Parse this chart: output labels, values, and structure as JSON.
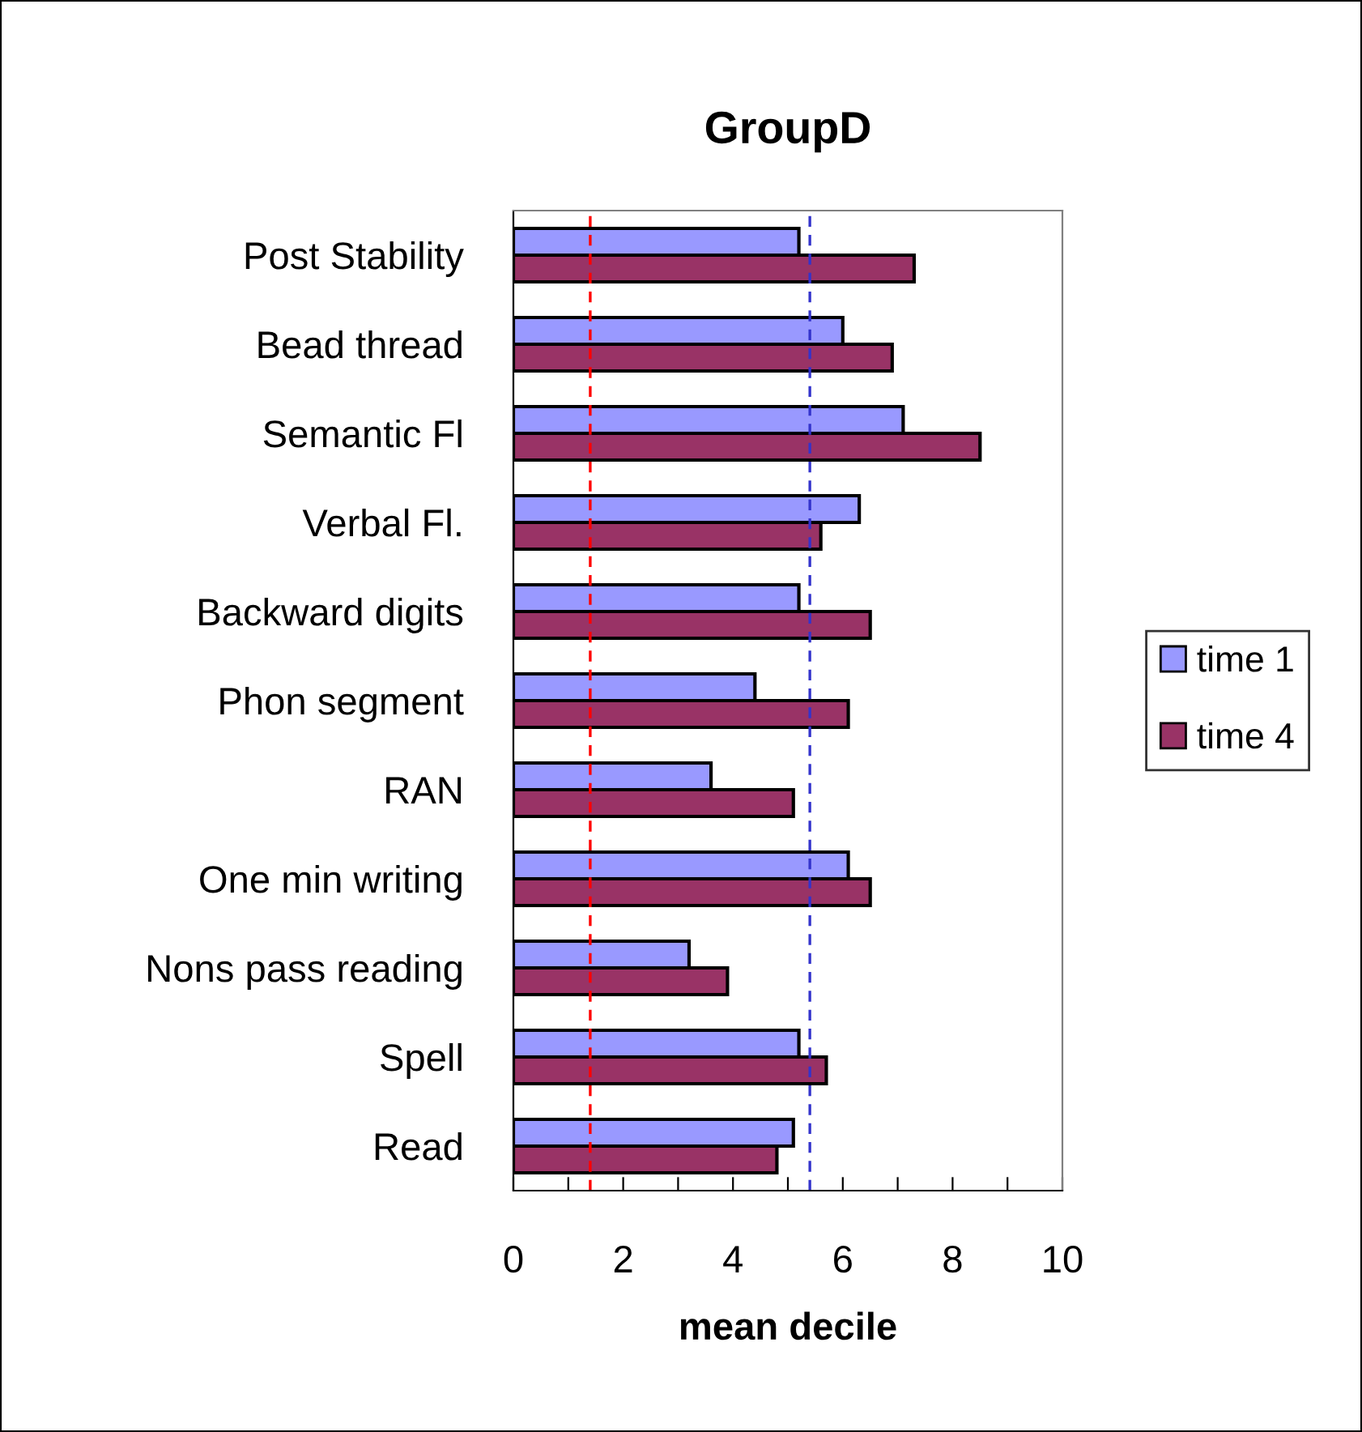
{
  "chart_data": {
    "type": "bar",
    "orientation": "horizontal",
    "title": "GroupD",
    "xlabel": "mean decile",
    "categories": [
      "Post Stability",
      "Bead thread",
      "Semantic Fl",
      "Verbal Fl.",
      "Backward digits",
      "Phon segment",
      "RAN",
      "One min writing",
      "Nons pass reading",
      "Spell",
      "Read"
    ],
    "series": [
      {
        "name": "time 1",
        "color": "#9999ff",
        "values": [
          5.2,
          6.0,
          7.1,
          6.3,
          5.2,
          4.4,
          3.6,
          6.1,
          3.2,
          5.2,
          5.1
        ]
      },
      {
        "name": "time 4",
        "color": "#993366",
        "values": [
          7.3,
          6.9,
          8.5,
          5.6,
          6.5,
          6.1,
          5.1,
          6.5,
          3.9,
          5.7,
          4.8
        ]
      }
    ],
    "xlim": [
      0,
      10
    ],
    "xticks": [
      0,
      {
        "value": 1,
        "label": null
      },
      2,
      {
        "value": 3,
        "label": null
      },
      4,
      {
        "value": 5,
        "label": null
      },
      6,
      {
        "value": 7,
        "label": null
      },
      8,
      {
        "value": 9,
        "label": null
      },
      10
    ],
    "ref_lines": [
      {
        "axis": "x",
        "value": 1.4,
        "color": "#ff0000",
        "line_style": "dashed"
      },
      {
        "axis": "x",
        "value": 5.4,
        "color": "#3333cc",
        "line_style": "dashed"
      }
    ],
    "grid": false,
    "legend": "right"
  }
}
